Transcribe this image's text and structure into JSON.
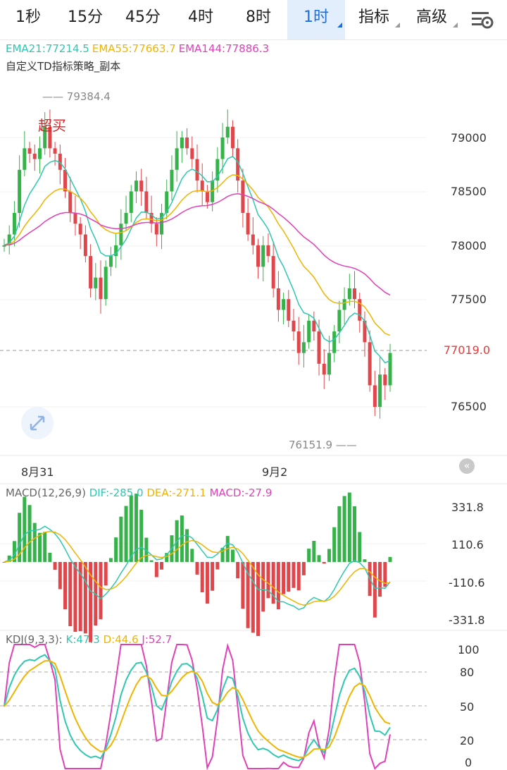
{
  "tabs": [
    {
      "label": "1秒"
    },
    {
      "label": "15分"
    },
    {
      "label": "45分"
    },
    {
      "label": "4时"
    },
    {
      "label": "8时"
    },
    {
      "label": "1时"
    },
    {
      "label": "指标"
    },
    {
      "label": "高级"
    }
  ],
  "active_tab": "1时",
  "settings_icon": "chart-settings-icon",
  "main": {
    "ema21": "EMA21:77214.5",
    "ema55": "EMA55:77663.7",
    "ema144": "EMA144:77886.3",
    "strategy": "自定义TD指标策略_副本",
    "price_labels": [
      "79000",
      "78500",
      "78000",
      "77500",
      "76500"
    ],
    "current_price": "77019.0",
    "high_label": "79384.4",
    "low_label": "76151.9",
    "overbuy": "超买",
    "dates": [
      "8月31",
      "9月2"
    ]
  },
  "macd": {
    "title": "MACD(12,26,9)",
    "dif": "DIF:-285.0",
    "dea": "DEA:-271.1",
    "macd": "MACD:-27.9",
    "labels": [
      "331.8",
      "110.6",
      "-110.6",
      "-331.8"
    ]
  },
  "kdj": {
    "title": "KDJ(9,3,3):",
    "k": "K:47.3",
    "d": "D:44.6",
    "j": "J:52.7",
    "labels": [
      "100",
      "80",
      "50",
      "20",
      "0"
    ]
  },
  "colors": {
    "up": "#36b24a",
    "down": "#e0474c",
    "ema21": "#2ec7b0",
    "ema55": "#f0b400",
    "ema144": "#e040b8",
    "active": "#1a6fe0"
  }
}
